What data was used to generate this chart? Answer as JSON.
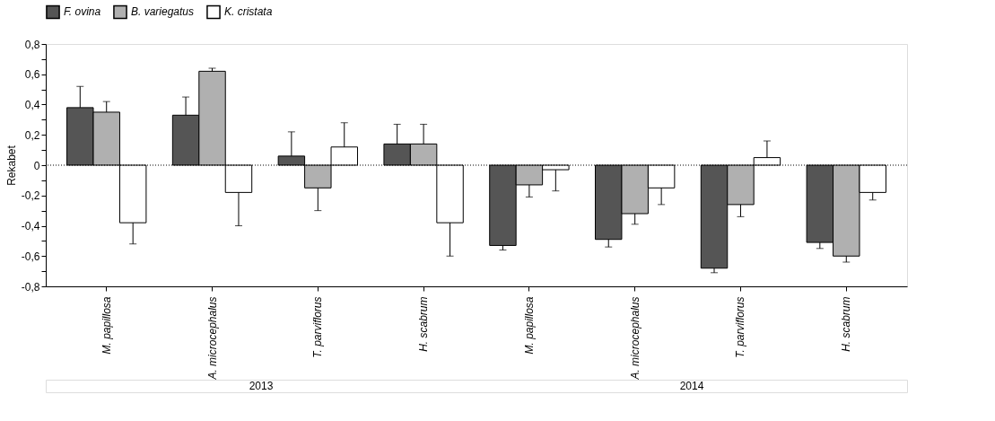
{
  "chart_data": {
    "type": "bar",
    "ylabel": "Rekabet",
    "categories": [
      "M. papillosa",
      "A. microcephalus",
      "T. parviflorus",
      "H. scabrum",
      "M. papillosa",
      "A. microcephalus",
      "T. parviflorus",
      "H. scabrum"
    ],
    "series": [
      {
        "name": "F. ovina",
        "color": "#555555",
        "values": [
          0.38,
          0.33,
          0.06,
          0.14,
          -0.53,
          -0.49,
          -0.68,
          -0.51
        ],
        "errors": [
          [
            0.38,
            0.52
          ],
          [
            0.33,
            0.45
          ],
          [
            0.06,
            0.22
          ],
          [
            0.14,
            0.27
          ],
          [
            -0.56,
            -0.53
          ],
          [
            -0.54,
            -0.49
          ],
          [
            -0.71,
            -0.68
          ],
          [
            -0.55,
            -0.51
          ]
        ]
      },
      {
        "name": "B. variegatus",
        "color": "#b0b0b0",
        "values": [
          0.35,
          0.62,
          -0.15,
          0.14,
          -0.13,
          -0.32,
          -0.26,
          -0.6
        ],
        "errors": [
          [
            0.35,
            0.42
          ],
          [
            0.62,
            0.64
          ],
          [
            -0.3,
            -0.15
          ],
          [
            0.14,
            0.27
          ],
          [
            -0.21,
            -0.13
          ],
          [
            -0.39,
            -0.32
          ],
          [
            -0.34,
            -0.26
          ],
          [
            -0.64,
            -0.6
          ]
        ]
      },
      {
        "name": "K. cristata",
        "color": "#ffffff",
        "values": [
          -0.38,
          -0.18,
          0.12,
          -0.38,
          -0.03,
          -0.15,
          0.05,
          -0.18
        ],
        "errors": [
          [
            -0.52,
            -0.38
          ],
          [
            -0.4,
            -0.18
          ],
          [
            0.12,
            0.28
          ],
          [
            -0.6,
            -0.38
          ],
          [
            -0.17,
            -0.03
          ],
          [
            -0.26,
            -0.15
          ],
          [
            0.05,
            0.16
          ],
          [
            -0.23,
            -0.18
          ]
        ]
      }
    ],
    "ylim": [
      -0.8,
      0.8
    ],
    "yticks": [
      {
        "value": -0.8,
        "label": "-0,8"
      },
      {
        "value": -0.7,
        "label": null
      },
      {
        "value": -0.6,
        "label": "-0,6"
      },
      {
        "value": -0.5,
        "label": null
      },
      {
        "value": -0.4,
        "label": "-0,4"
      },
      {
        "value": -0.3,
        "label": null
      },
      {
        "value": -0.2,
        "label": "-0,2"
      },
      {
        "value": -0.1,
        "label": null
      },
      0,
      {
        "value": 0.1,
        "label": null
      },
      {
        "value": 0.2,
        "label": "0,2"
      },
      {
        "value": 0.3,
        "label": null
      },
      {
        "value": 0.4,
        "label": "0,4"
      },
      {
        "value": 0.5,
        "label": null
      },
      {
        "value": 0.6,
        "label": "0,6"
      },
      {
        "value": 0.7,
        "label": null
      },
      {
        "value": 0.8,
        "label": "0,8"
      }
    ],
    "ref_lines": [
      {
        "axis": "y",
        "value": 0,
        "line_style": "dotted",
        "color": "#000000"
      }
    ],
    "annotations": [
      "2013",
      "2014"
    ],
    "legend": "top",
    "grid": false
  }
}
